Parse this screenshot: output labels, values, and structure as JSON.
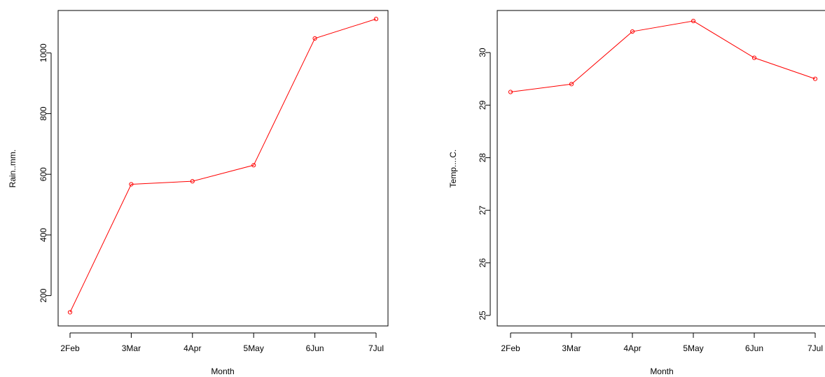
{
  "chart_data": [
    {
      "type": "line",
      "title": "",
      "xlabel": "Month",
      "ylabel": "Rain..mm.",
      "categories": [
        "2Feb",
        "3Mar",
        "4Apr",
        "5May",
        "6Jun",
        "7Jul"
      ],
      "series": [
        {
          "values": [
            145,
            567,
            577,
            630,
            1048,
            1112
          ],
          "color": "#ff0000"
        }
      ],
      "yticks": [
        200,
        400,
        600,
        800,
        1000
      ],
      "ylim": [
        100,
        1140
      ],
      "grid": false,
      "marker": "open-circle"
    },
    {
      "type": "line",
      "title": "",
      "xlabel": "Month",
      "ylabel": "Temp....C.",
      "categories": [
        "2Feb",
        "3Mar",
        "4Apr",
        "5May",
        "6Jun",
        "7Jul"
      ],
      "series": [
        {
          "values": [
            29.25,
            29.4,
            30.4,
            30.6,
            29.9,
            29.5
          ],
          "color": "#ff0000"
        }
      ],
      "yticks": [
        25,
        26,
        27,
        28,
        29,
        30
      ],
      "ylim": [
        24.8,
        30.8
      ],
      "grid": false,
      "marker": "open-circle"
    }
  ]
}
